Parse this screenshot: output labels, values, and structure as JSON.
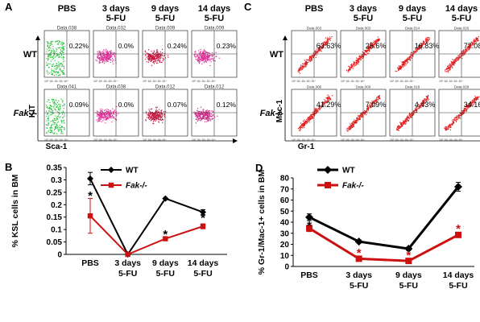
{
  "panels": {
    "A": {
      "letter": "A",
      "conditions": [
        {
          "line1": "PBS",
          "line2": ""
        },
        {
          "line1": "3 days",
          "line2": "5-FU"
        },
        {
          "line1": "9 days",
          "line2": "5-FU"
        },
        {
          "line1": "14 days",
          "line2": "5-FU"
        }
      ],
      "row_labels": [
        "WT",
        "Fak-/-"
      ],
      "x_axis_label": "Sca-1",
      "y_axis_label": "KIT",
      "plots": [
        [
          {
            "file": "Data.038",
            "pct": "0.22%",
            "dot_color": "#22c43a"
          },
          {
            "file": "Data.032",
            "pct": "0.0%",
            "dot_color": "#e0309a"
          },
          {
            "file": "Data.009",
            "pct": "0.24%",
            "dot_color": "#c21840"
          },
          {
            "file": "Data.009",
            "pct": "0.23%",
            "dot_color": "#e0309a"
          }
        ],
        [
          {
            "file": "Data.041",
            "pct": "0.09%",
            "dot_color": "#22c43a"
          },
          {
            "file": "Data.038",
            "pct": "0.0%",
            "dot_color": "#e0309a"
          },
          {
            "file": "Data.012",
            "pct": "0.07%",
            "dot_color": "#c21840"
          },
          {
            "file": "Data.012",
            "pct": "0.12%",
            "dot_color": "#d02888"
          }
        ]
      ]
    },
    "C": {
      "letter": "C",
      "conditions": [
        {
          "line1": "PBS",
          "line2": ""
        },
        {
          "line1": "3 days",
          "line2": "5-FU"
        },
        {
          "line1": "9 days",
          "line2": "5-FU"
        },
        {
          "line1": "14 days",
          "line2": "5-FU"
        }
      ],
      "row_labels": [
        "WT",
        "Fak-/-"
      ],
      "x_axis_label": "Gr-1",
      "y_axis_label": "Mac-1",
      "plots": [
        [
          {
            "file": "Data.003",
            "pct": "63.63%",
            "dot_color": "#e02020"
          },
          {
            "file": "Data.003",
            "pct": "25.6%",
            "dot_color": "#e02020"
          },
          {
            "file": "Data.014",
            "pct": "16.83%",
            "dot_color": "#e02020"
          },
          {
            "file": "Data.026",
            "pct": "77.08%",
            "dot_color": "#e02020"
          }
        ],
        [
          {
            "file": "Data.006",
            "pct": "41.29%",
            "dot_color": "#e02020"
          },
          {
            "file": "Data.009",
            "pct": "7.09%",
            "dot_color": "#e02020"
          },
          {
            "file": "Data.018",
            "pct": "4.43%",
            "dot_color": "#e02020"
          },
          {
            "file": "Data.028",
            "pct": "34.16%",
            "dot_color": "#e02020"
          }
        ]
      ]
    },
    "B": {
      "letter": "B"
    },
    "D": {
      "letter": "D"
    }
  },
  "chart_data": [
    {
      "id": "B",
      "type": "line",
      "categories": [
        [
          "PBS"
        ],
        [
          "3 days",
          "5-FU"
        ],
        [
          "9 days",
          "5-FU"
        ],
        [
          "14 days",
          "5-FU"
        ]
      ],
      "ylabel": "% KSL cells in BM",
      "ylim": [
        0,
        0.35
      ],
      "yticks": [
        0,
        0.05,
        0.1,
        0.15,
        0.2,
        0.25,
        0.3,
        0.35
      ],
      "ytick_labels": [
        "0",
        "0.05",
        "0.1",
        "0.15",
        "0.2",
        "0.25",
        "0.3",
        "0.35"
      ],
      "legend_position": "top-right",
      "series": [
        {
          "name": "WT",
          "color": "#000000",
          "marker": "diamond",
          "values": [
            0.305,
            0.0,
            0.225,
            0.17
          ],
          "errors": [
            0.025,
            0,
            0,
            0.01
          ]
        },
        {
          "name": "Fak-/-",
          "color": "#cc1111",
          "marker": "square",
          "values": [
            0.155,
            0.0,
            0.063,
            0.113
          ],
          "errors": [
            0.07,
            0,
            0.005,
            0.01
          ]
        }
      ],
      "annotations": [
        {
          "category_index": 0,
          "value": 0.24,
          "text": "*"
        },
        {
          "category_index": 2,
          "value": 0.085,
          "text": "*"
        },
        {
          "category_index": 3,
          "value": 0.15,
          "text": "*"
        }
      ]
    },
    {
      "id": "D",
      "type": "line",
      "categories": [
        [
          "PBS"
        ],
        [
          "3 days",
          "5-FU"
        ],
        [
          "9 days",
          "5-FU"
        ],
        [
          "14 days",
          "5-FU"
        ]
      ],
      "ylabel": "% Gr-1/Mac-1+ cells in BM",
      "ylim": [
        0,
        80
      ],
      "yticks": [
        0,
        10,
        20,
        30,
        40,
        50,
        60,
        70,
        80
      ],
      "ytick_labels": [
        "0",
        "10",
        "20",
        "30",
        "40",
        "50",
        "60",
        "70",
        "80"
      ],
      "legend_position": "top-left",
      "series": [
        {
          "name": "WT",
          "color": "#000000",
          "marker": "diamond",
          "values": [
            44.5,
            22.5,
            16.0,
            72.0
          ],
          "errors": [
            3,
            1.5,
            1.5,
            4
          ]
        },
        {
          "name": "Fak-/-",
          "color": "#cc1111",
          "marker": "square",
          "values": [
            34.5,
            7.0,
            5.0,
            28.5
          ],
          "errors": [
            3,
            1,
            1,
            2
          ]
        }
      ],
      "annotations": [
        {
          "category_index": 0,
          "value": 38,
          "text": "*"
        },
        {
          "category_index": 1,
          "value": 13,
          "text": "*"
        },
        {
          "category_index": 2,
          "value": 11,
          "text": "*"
        },
        {
          "category_index": 3,
          "value": 35,
          "text": "*"
        }
      ]
    }
  ]
}
